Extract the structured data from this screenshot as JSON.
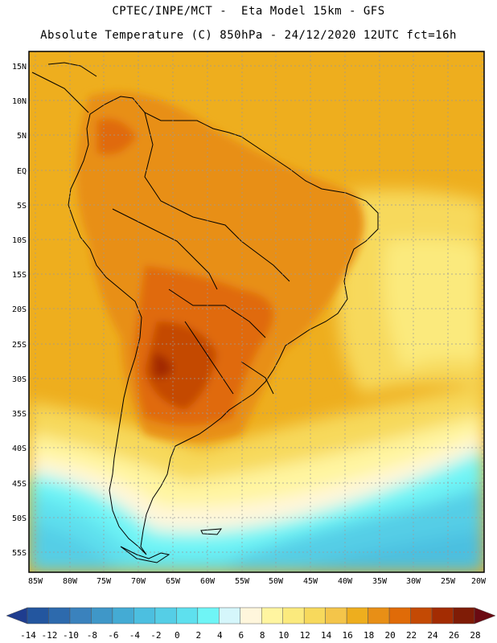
{
  "header": {
    "line1": "CPTEC/INPE/MCT -  Eta Model 15km - GFS",
    "line2": "Absolute Temperature (C) 850hPa - 24/12/2020 12UTC fct=16h"
  },
  "map": {
    "lat_labels": [
      "15N",
      "10N",
      "5N",
      "EQ",
      "5S",
      "10S",
      "15S",
      "20S",
      "25S",
      "30S",
      "35S",
      "40S",
      "45S",
      "50S",
      "55S"
    ],
    "lon_labels": [
      "85W",
      "80W",
      "75W",
      "70W",
      "65W",
      "60W",
      "55W",
      "50W",
      "45W",
      "40W",
      "35W",
      "30W",
      "25W",
      "20W"
    ]
  },
  "colorbar": {
    "labels": [
      "-14",
      "-12",
      "-10",
      "-8",
      "-6",
      "-4",
      "-2",
      "0",
      "2",
      "4",
      "6",
      "8",
      "10",
      "12",
      "14",
      "16",
      "18",
      "20",
      "22",
      "24",
      "26",
      "28"
    ],
    "colors": [
      "#1f3d8f",
      "#23569f",
      "#2d6aad",
      "#3a82bd",
      "#3f97c8",
      "#44abd4",
      "#4cbfe0",
      "#55cee6",
      "#5ee0ee",
      "#6ff5f6",
      "#d5f6fb",
      "#fff6dc",
      "#fff5a0",
      "#fbea7d",
      "#f7d95c",
      "#f4c54a",
      "#eeae1e",
      "#e88f16",
      "#e06b08",
      "#c44a04",
      "#a32c02",
      "#7f1c06",
      "#6a0a12"
    ]
  }
}
